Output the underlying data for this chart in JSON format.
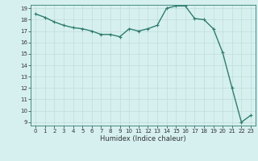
{
  "x": [
    0,
    1,
    2,
    3,
    4,
    5,
    6,
    7,
    8,
    9,
    10,
    11,
    12,
    13,
    14,
    15,
    16,
    17,
    18,
    19,
    20,
    21,
    22,
    23
  ],
  "y": [
    18.5,
    18.2,
    17.8,
    17.5,
    17.3,
    17.2,
    17.0,
    16.7,
    16.7,
    16.5,
    17.2,
    17.0,
    17.2,
    17.5,
    19.0,
    19.2,
    19.2,
    18.1,
    18.0,
    17.2,
    15.1,
    12.0,
    9.0,
    9.6
  ],
  "xlabel": "Humidex (Indice chaleur)",
  "ylim_min": 9,
  "ylim_max": 19,
  "xlim_min": -0.5,
  "xlim_max": 23.5,
  "line_color": "#2e7d6e",
  "marker": "+",
  "bg_color": "#d6f0f0",
  "grid_color": "#c0ddd8",
  "spine_color": "#2e7d6e",
  "tick_color": "#333333",
  "yticks": [
    9,
    10,
    11,
    12,
    13,
    14,
    15,
    16,
    17,
    18,
    19
  ],
  "xticks": [
    0,
    1,
    2,
    3,
    4,
    5,
    6,
    7,
    8,
    9,
    10,
    11,
    12,
    13,
    14,
    15,
    16,
    17,
    18,
    19,
    20,
    21,
    22,
    23
  ],
  "tick_fontsize": 5.0,
  "xlabel_fontsize": 6.0,
  "linewidth": 1.0,
  "markersize": 3.5,
  "markeredgewidth": 0.8
}
